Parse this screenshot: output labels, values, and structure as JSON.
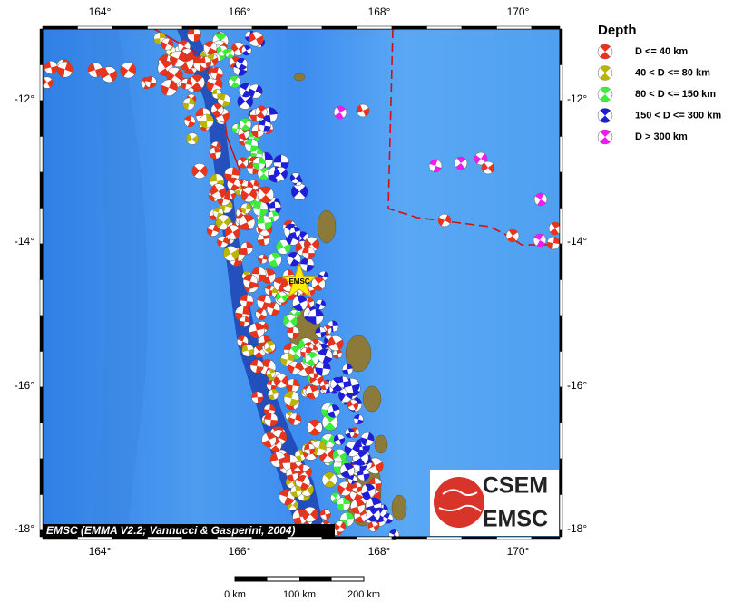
{
  "map": {
    "lon_labels": [
      "164°",
      "166°",
      "168°",
      "170°"
    ],
    "lat_labels": [
      "-12°",
      "-14°",
      "-16°",
      "-18°"
    ],
    "legend": {
      "title": "Depth",
      "items": [
        {
          "label": "D <= 40 km",
          "color": "#e8341c"
        },
        {
          "label": "40 < D <= 80 km",
          "color": "#b9b500"
        },
        {
          "label": "80 < D <= 150 km",
          "color": "#3cee3c"
        },
        {
          "label": "150 < D <= 300 km",
          "color": "#1e1ed8"
        },
        {
          "label": "D > 300 km",
          "color": "#ee1cee"
        }
      ]
    },
    "star_label": "EMSC",
    "credit": "EMSC (EMMA V2.2; Vannucci & Gasperini, 2004)",
    "scale_labels": [
      "0 km",
      "100 km",
      "200 km"
    ],
    "logo": {
      "top": "CSEM",
      "bottom": "EMSC"
    }
  }
}
